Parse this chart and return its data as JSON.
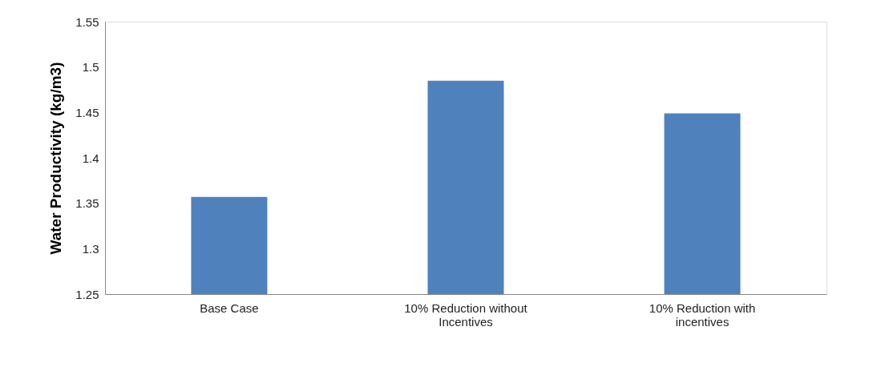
{
  "chart_data": {
    "type": "bar",
    "ylabel": "Water Productivity (kg/m3)",
    "categories": [
      "Base Case",
      "10% Reduction without\nIncentives",
      "10% Reduction with\nincentives"
    ],
    "values": [
      1.357,
      1.485,
      1.449
    ],
    "color": "#4f81bd",
    "ylim": [
      1.25,
      1.55
    ],
    "yticks": [
      1.25,
      1.3,
      1.35,
      1.4,
      1.45,
      1.5,
      1.55
    ],
    "grid": false
  }
}
